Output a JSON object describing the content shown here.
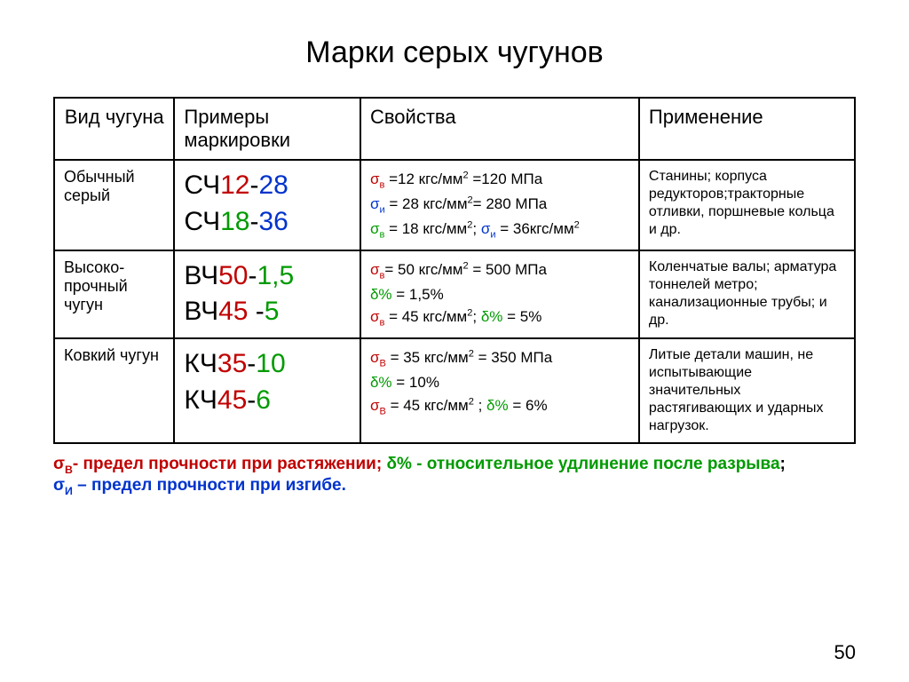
{
  "page": {
    "title": "Марки серых чугунов",
    "number": "50"
  },
  "colors": {
    "black": "#000000",
    "red": "#c00000",
    "green": "#009a00",
    "blue": "#0033cc",
    "background": "#ffffff",
    "border": "#000000"
  },
  "table": {
    "columns": [
      "Вид чугуна",
      "Примеры маркировки",
      "Свойства",
      "Применение"
    ],
    "rows": [
      {
        "type": "Обычный серый",
        "marks": [
          [
            {
              "t": "СЧ",
              "c": "black"
            },
            {
              "t": "12",
              "c": "red"
            },
            {
              "t": "-",
              "c": "black"
            },
            {
              "t": "28",
              "c": "blue"
            }
          ],
          [
            {
              "t": "СЧ",
              "c": "black"
            },
            {
              "t": "18",
              "c": "green"
            },
            {
              "t": "-",
              "c": "black"
            },
            {
              "t": "36",
              "c": "blue"
            }
          ]
        ],
        "properties": [
          [
            {
              "t": "σ",
              "c": "red"
            },
            {
              "t": "в",
              "c": "red",
              "sub": true
            },
            {
              "t": " =12 кгс/мм",
              "c": "black"
            },
            {
              "t": "2",
              "c": "black",
              "sup": true
            },
            {
              "t": " =120 МПа",
              "c": "black"
            }
          ],
          [
            {
              "t": "σ",
              "c": "blue"
            },
            {
              "t": "и",
              "c": "blue",
              "sub": true
            },
            {
              "t": " = 28 кгс/мм",
              "c": "black"
            },
            {
              "t": "2",
              "c": "black",
              "sup": true
            },
            {
              "t": "= 280 МПа",
              "c": "black"
            }
          ],
          [
            {
              "t": "σ",
              "c": "green"
            },
            {
              "t": "в",
              "c": "green",
              "sub": true
            },
            {
              "t": " = 18 кгс/мм",
              "c": "black"
            },
            {
              "t": "2",
              "c": "black",
              "sup": true
            },
            {
              "t": "; ",
              "c": "black"
            },
            {
              "t": "σ",
              "c": "blue"
            },
            {
              "t": "и",
              "c": "blue",
              "sub": true
            },
            {
              "t": " = 36кгс/мм",
              "c": "black"
            },
            {
              "t": "2",
              "c": "black",
              "sup": true
            }
          ]
        ],
        "application": "Станины;  корпуса редукторов;тракторные отливки, поршневые кольца и др."
      },
      {
        "type": "Высоко-\nпрочный чугун",
        "marks": [
          [
            {
              "t": "ВЧ",
              "c": "black"
            },
            {
              "t": "50",
              "c": "red"
            },
            {
              "t": "-",
              "c": "black"
            },
            {
              "t": "1,5",
              "c": "green"
            }
          ],
          [
            {
              "t": "ВЧ",
              "c": "black"
            },
            {
              "t": "45 ",
              "c": "red"
            },
            {
              "t": "-",
              "c": "black"
            },
            {
              "t": "5",
              "c": "green"
            }
          ]
        ],
        "properties": [
          [
            {
              "t": "σ",
              "c": "red"
            },
            {
              "t": "в",
              "c": "red",
              "sub": true
            },
            {
              "t": "= 50 кгс/мм",
              "c": "black"
            },
            {
              "t": "2",
              "c": "black",
              "sup": true
            },
            {
              "t": " = 500 МПа",
              "c": "black"
            }
          ],
          [
            {
              "t": "δ% ",
              "c": "green"
            },
            {
              "t": "= 1,5%",
              "c": "black"
            }
          ],
          [
            {
              "t": "σ",
              "c": "red"
            },
            {
              "t": "в",
              "c": "red",
              "sub": true
            },
            {
              "t": " = 45 кгс/мм",
              "c": "black"
            },
            {
              "t": "2",
              "c": "black",
              "sup": true
            },
            {
              "t": "; ",
              "c": "black"
            },
            {
              "t": "δ%",
              "c": "green"
            },
            {
              "t": " = 5%",
              "c": "black"
            }
          ]
        ],
        "application": "Коленчатые валы; арматура тоннелей метро; канализационные трубы; и др."
      },
      {
        "type": "Ковкий чугун",
        "marks": [
          [
            {
              "t": "КЧ",
              "c": "black"
            },
            {
              "t": "35",
              "c": "red"
            },
            {
              "t": "-",
              "c": "black"
            },
            {
              "t": "10",
              "c": "green"
            }
          ],
          [
            {
              "t": "КЧ",
              "c": "black"
            },
            {
              "t": "45",
              "c": "red"
            },
            {
              "t": "-",
              "c": "black"
            },
            {
              "t": "6",
              "c": "green"
            }
          ]
        ],
        "properties": [
          [
            {
              "t": "σ",
              "c": "red"
            },
            {
              "t": "В",
              "c": "red",
              "sub": true
            },
            {
              "t": " = 35 кгс/мм",
              "c": "black"
            },
            {
              "t": "2",
              "c": "black",
              "sup": true
            },
            {
              "t": " = 350 МПа",
              "c": "black"
            }
          ],
          [
            {
              "t": " δ% ",
              "c": "green"
            },
            {
              "t": "= 10%",
              "c": "black"
            }
          ],
          [
            {
              "t": "σ",
              "c": "red"
            },
            {
              "t": "В",
              "c": "red",
              "sub": true
            },
            {
              "t": " = 45 кгс/мм",
              "c": "black"
            },
            {
              "t": "2",
              "c": "black",
              "sup": true
            },
            {
              "t": " ; ",
              "c": "black"
            },
            {
              "t": "δ%",
              "c": "green"
            },
            {
              "t": " = 6%",
              "c": "black"
            }
          ]
        ],
        "application": "Литые детали машин, не испытывающие значительных растягивающих и ударных нагрузок."
      }
    ]
  },
  "legend": {
    "line1": [
      {
        "t": "σ",
        "c": "red"
      },
      {
        "t": "В",
        "c": "red",
        "sub": true
      },
      {
        "t": "- предел прочности при растяжении;   ",
        "c": "red"
      },
      {
        "t": "δ% - относительное удлинение после разрыва",
        "c": "green"
      },
      {
        "t": ";",
        "c": "black"
      }
    ],
    "line2": [
      {
        "t": "σ",
        "c": "blue"
      },
      {
        "t": "И",
        "c": "blue",
        "sub": true
      },
      {
        "t": " – предел прочности при изгибе.",
        "c": "blue"
      }
    ]
  }
}
